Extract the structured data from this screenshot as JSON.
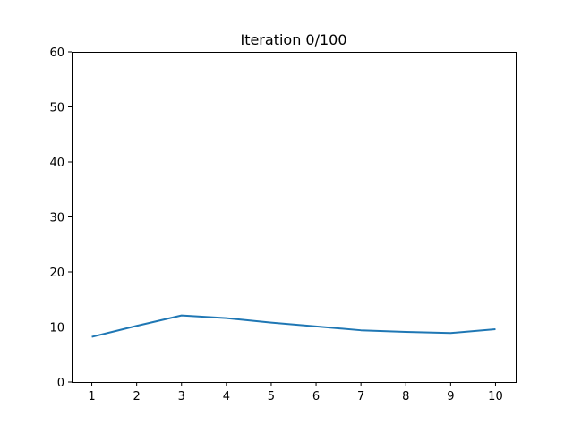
{
  "chart_data": {
    "type": "line",
    "title": "Iteration 0/100",
    "xlabel": "",
    "ylabel": "",
    "x": [
      1,
      2,
      3,
      4,
      5,
      6,
      7,
      8,
      9,
      10
    ],
    "series": [
      {
        "values": [
          8.2,
          10.2,
          12.1,
          11.6,
          10.8,
          10.1,
          9.4,
          9.1,
          8.9,
          9.6
        ],
        "color": "#1f77b4"
      }
    ],
    "xlim": [
      0.55,
      10.45
    ],
    "ylim": [
      0,
      60
    ],
    "xticks": [
      1,
      2,
      3,
      4,
      5,
      6,
      7,
      8,
      9,
      10
    ],
    "yticks": [
      0,
      10,
      20,
      30,
      40,
      50,
      60
    ],
    "grid": false,
    "legend": "none"
  }
}
